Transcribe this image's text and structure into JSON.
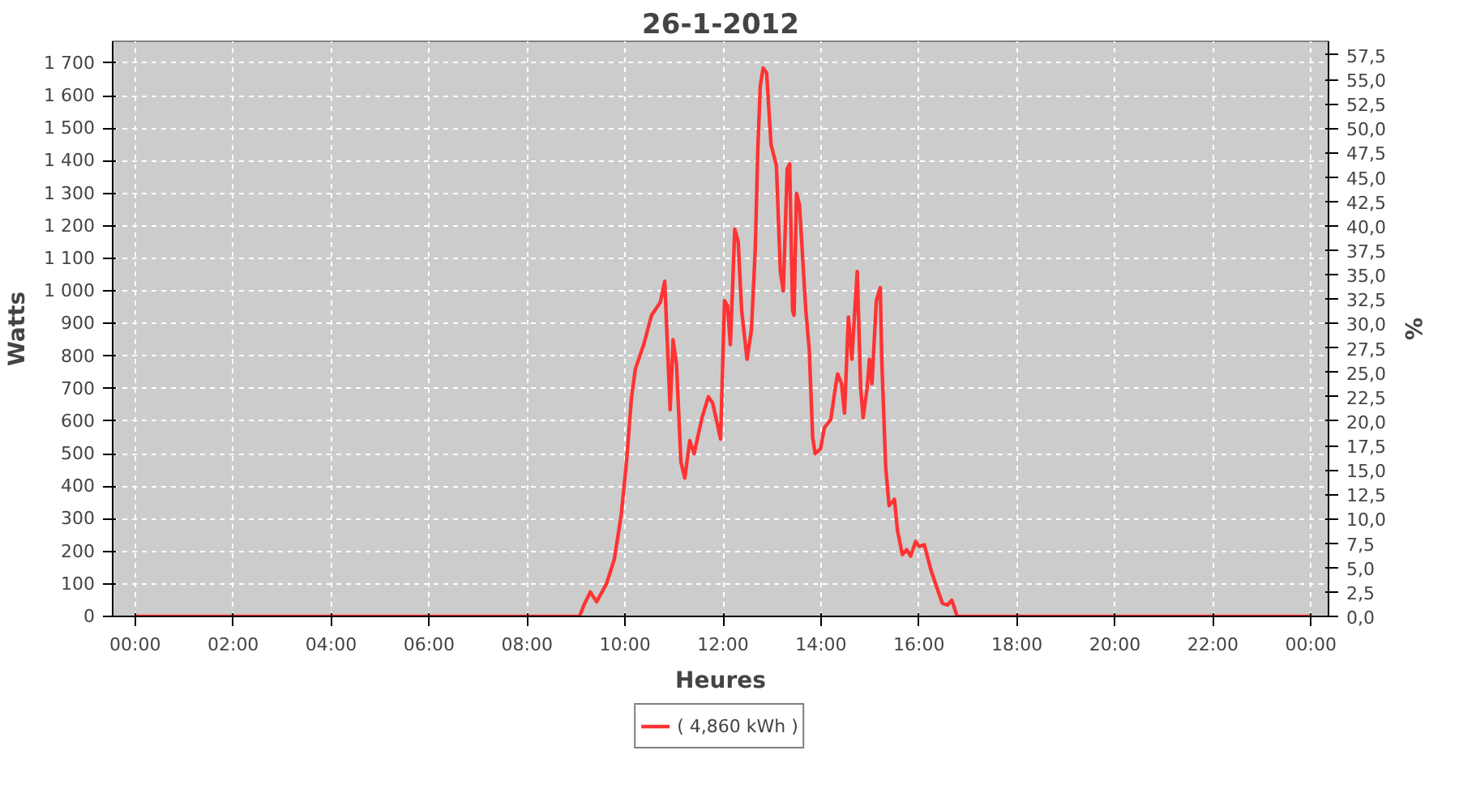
{
  "chart_data": {
    "type": "line",
    "title": "26-1-2012",
    "xlabel": "Heures",
    "ylabel": "Watts",
    "y2label": "%",
    "x": [
      0,
      9.07,
      9.16,
      9.29,
      9.42,
      9.62,
      9.78,
      9.92,
      10.03,
      10.13,
      10.21,
      10.38,
      10.54,
      10.72,
      10.81,
      10.92,
      10.98,
      11.05,
      11.14,
      11.22,
      11.32,
      11.41,
      11.57,
      11.7,
      11.79,
      11.95,
      12.03,
      12.09,
      12.15,
      12.24,
      12.31,
      12.38,
      12.49,
      12.58,
      12.66,
      12.71,
      12.76,
      12.82,
      12.89,
      12.98,
      13.09,
      13.17,
      13.23,
      13.31,
      13.36,
      13.42,
      13.45,
      13.5,
      13.56,
      13.69,
      13.76,
      13.83,
      13.88,
      13.99,
      14.07,
      14.2,
      14.29,
      14.34,
      14.42,
      14.48,
      14.56,
      14.63,
      14.69,
      14.74,
      14.81,
      14.86,
      14.94,
      14.99,
      15.04,
      15.13,
      15.21,
      15.24,
      15.32,
      15.39,
      15.5,
      15.56,
      15.66,
      15.75,
      15.83,
      15.93,
      16.0,
      16.11,
      16.24,
      16.35,
      16.48,
      16.58,
      16.67,
      16.78,
      24
    ],
    "series": [
      {
        "name": "( 4,860 kWh )",
        "color": "#ff3333",
        "values": [
          0,
          0,
          35,
          75,
          45,
          100,
          175,
          310,
          475,
          670,
          760,
          835,
          925,
          965,
          1030,
          635,
          850,
          775,
          475,
          425,
          540,
          500,
          610,
          675,
          655,
          545,
          970,
          955,
          835,
          1190,
          1150,
          940,
          790,
          880,
          1135,
          1435,
          1630,
          1685,
          1670,
          1450,
          1385,
          1060,
          1000,
          1375,
          1390,
          940,
          925,
          1300,
          1265,
          940,
          820,
          550,
          500,
          515,
          580,
          605,
          700,
          745,
          715,
          625,
          920,
          790,
          940,
          1060,
          700,
          610,
          700,
          790,
          715,
          970,
          1010,
          790,
          460,
          340,
          360,
          265,
          190,
          205,
          185,
          230,
          215,
          220,
          145,
          95,
          40,
          35,
          50,
          0,
          0
        ]
      }
    ],
    "xlim": [
      -0.46,
      24.36
    ],
    "xticks": [
      {
        "value": 0,
        "label": "00:00"
      },
      {
        "value": 2,
        "label": "02:00"
      },
      {
        "value": 4,
        "label": "04:00"
      },
      {
        "value": 6,
        "label": "06:00"
      },
      {
        "value": 8,
        "label": "08:00"
      },
      {
        "value": 10,
        "label": "10:00"
      },
      {
        "value": 12,
        "label": "12:00"
      },
      {
        "value": 14,
        "label": "14:00"
      },
      {
        "value": 16,
        "label": "16:00"
      },
      {
        "value": 18,
        "label": "18:00"
      },
      {
        "value": 20,
        "label": "20:00"
      },
      {
        "value": 22,
        "label": "22:00"
      },
      {
        "value": 24,
        "label": "00:00"
      }
    ],
    "ylim": [
      0,
      1767
    ],
    "yticks": [
      0,
      100,
      200,
      300,
      400,
      500,
      600,
      700,
      800,
      900,
      {
        "value": 1000,
        "label": "1 000"
      },
      {
        "value": 1100,
        "label": "1 100"
      },
      {
        "value": 1200,
        "label": "1 200"
      },
      {
        "value": 1300,
        "label": "1 300"
      },
      {
        "value": 1400,
        "label": "1 400"
      },
      {
        "value": 1500,
        "label": "1 500"
      },
      {
        "value": 1600,
        "label": "1 600"
      },
      {
        "value": 1700,
        "label": "1 700"
      }
    ],
    "y2lim": [
      0,
      58.9
    ],
    "y2ticks": [
      {
        "value": 0,
        "label": "0,0"
      },
      {
        "value": 2.5,
        "label": "2,5"
      },
      {
        "value": 5,
        "label": "5,0"
      },
      {
        "value": 7.5,
        "label": "7,5"
      },
      {
        "value": 10,
        "label": "10,0"
      },
      {
        "value": 12.5,
        "label": "12,5"
      },
      {
        "value": 15,
        "label": "15,0"
      },
      {
        "value": 17.5,
        "label": "17,5"
      },
      {
        "value": 20,
        "label": "20,0"
      },
      {
        "value": 22.5,
        "label": "22,5"
      },
      {
        "value": 25,
        "label": "25,0"
      },
      {
        "value": 27.5,
        "label": "27,5"
      },
      {
        "value": 30,
        "label": "30,0"
      },
      {
        "value": 32.5,
        "label": "32,5"
      },
      {
        "value": 35,
        "label": "35,0"
      },
      {
        "value": 37.5,
        "label": "37,5"
      },
      {
        "value": 40,
        "label": "40,0"
      },
      {
        "value": 42.5,
        "label": "42,5"
      },
      {
        "value": 45,
        "label": "45,0"
      },
      {
        "value": 47.5,
        "label": "47,5"
      },
      {
        "value": 50,
        "label": "50,0"
      },
      {
        "value": 52.5,
        "label": "52,5"
      },
      {
        "value": 55,
        "label": "55,0"
      },
      {
        "value": 57.5,
        "label": "57,5"
      }
    ],
    "grid": true,
    "legend": "bottom",
    "marker": "none",
    "line_style": "solid"
  }
}
